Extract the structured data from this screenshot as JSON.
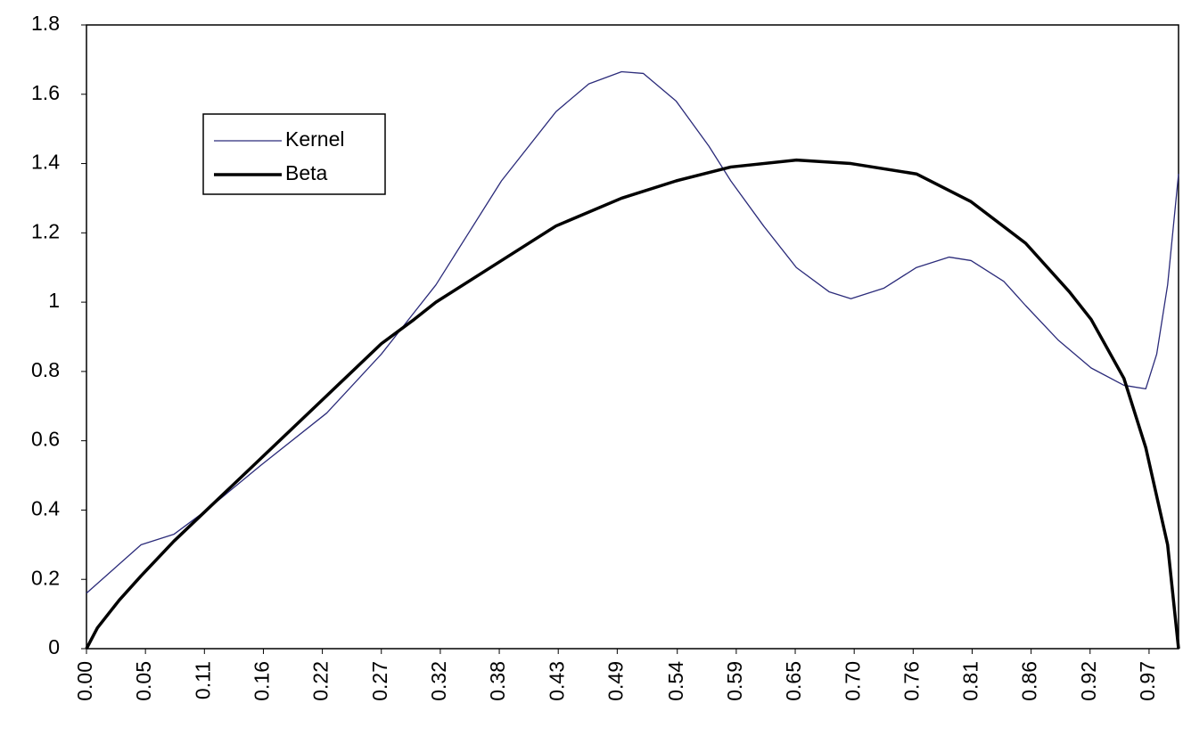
{
  "chart_data": {
    "type": "line",
    "xlim": [
      0,
      1
    ],
    "ylim": [
      0,
      1.8
    ],
    "yticks": [
      0,
      0.2,
      0.4,
      0.6,
      0.8,
      1,
      1.2,
      1.4,
      1.6,
      1.8
    ],
    "xticks": [
      {
        "value": 0,
        "label": "0.00"
      },
      {
        "value": 0.054,
        "label": "0.05"
      },
      {
        "value": 0.108,
        "label": "0.11"
      },
      {
        "value": 0.162,
        "label": "0.16"
      },
      {
        "value": 0.216,
        "label": "0.22"
      },
      {
        "value": 0.27,
        "label": "0.27"
      },
      {
        "value": 0.324,
        "label": "0.32"
      },
      {
        "value": 0.378,
        "label": "0.38"
      },
      {
        "value": 0.432,
        "label": "0.43"
      },
      {
        "value": 0.486,
        "label": "0.49"
      },
      {
        "value": 0.541,
        "label": "0.54"
      },
      {
        "value": 0.595,
        "label": "0.59"
      },
      {
        "value": 0.649,
        "label": "0.65"
      },
      {
        "value": 0.703,
        "label": "0.70"
      },
      {
        "value": 0.757,
        "label": "0.76"
      },
      {
        "value": 0.811,
        "label": "0.81"
      },
      {
        "value": 0.865,
        "label": "0.86"
      },
      {
        "value": 0.919,
        "label": "0.92"
      },
      {
        "value": 0.973,
        "label": "0.97"
      }
    ],
    "legend": "upper left",
    "series": [
      {
        "name": "Kernel",
        "color": "#2b2b7a",
        "width": 1.3,
        "x": [
          0,
          0.05,
          0.08,
          0.11,
          0.16,
          0.22,
          0.27,
          0.3,
          0.32,
          0.35,
          0.38,
          0.43,
          0.46,
          0.49,
          0.51,
          0.54,
          0.57,
          0.59,
          0.62,
          0.65,
          0.68,
          0.7,
          0.73,
          0.76,
          0.79,
          0.81,
          0.84,
          0.86,
          0.89,
          0.92,
          0.95,
          0.97,
          0.98,
          0.99,
          1.0
        ],
        "values": [
          0.16,
          0.3,
          0.33,
          0.4,
          0.53,
          0.68,
          0.85,
          0.97,
          1.05,
          1.2,
          1.35,
          1.55,
          1.63,
          1.665,
          1.66,
          1.58,
          1.45,
          1.35,
          1.22,
          1.1,
          1.03,
          1.01,
          1.04,
          1.1,
          1.13,
          1.12,
          1.06,
          0.99,
          0.89,
          0.81,
          0.76,
          0.75,
          0.85,
          1.05,
          1.37
        ]
      },
      {
        "name": "Beta",
        "color": "#000000",
        "width": 3.5,
        "x": [
          0,
          0.01,
          0.03,
          0.05,
          0.08,
          0.11,
          0.16,
          0.22,
          0.27,
          0.3,
          0.32,
          0.38,
          0.43,
          0.49,
          0.54,
          0.59,
          0.65,
          0.7,
          0.76,
          0.81,
          0.86,
          0.9,
          0.92,
          0.95,
          0.97,
          0.99,
          1.0
        ],
        "values": [
          0,
          0.06,
          0.14,
          0.21,
          0.31,
          0.4,
          0.55,
          0.73,
          0.88,
          0.95,
          1.0,
          1.12,
          1.22,
          1.3,
          1.35,
          1.39,
          1.41,
          1.4,
          1.37,
          1.29,
          1.17,
          1.03,
          0.95,
          0.78,
          0.58,
          0.3,
          0
        ]
      }
    ]
  }
}
